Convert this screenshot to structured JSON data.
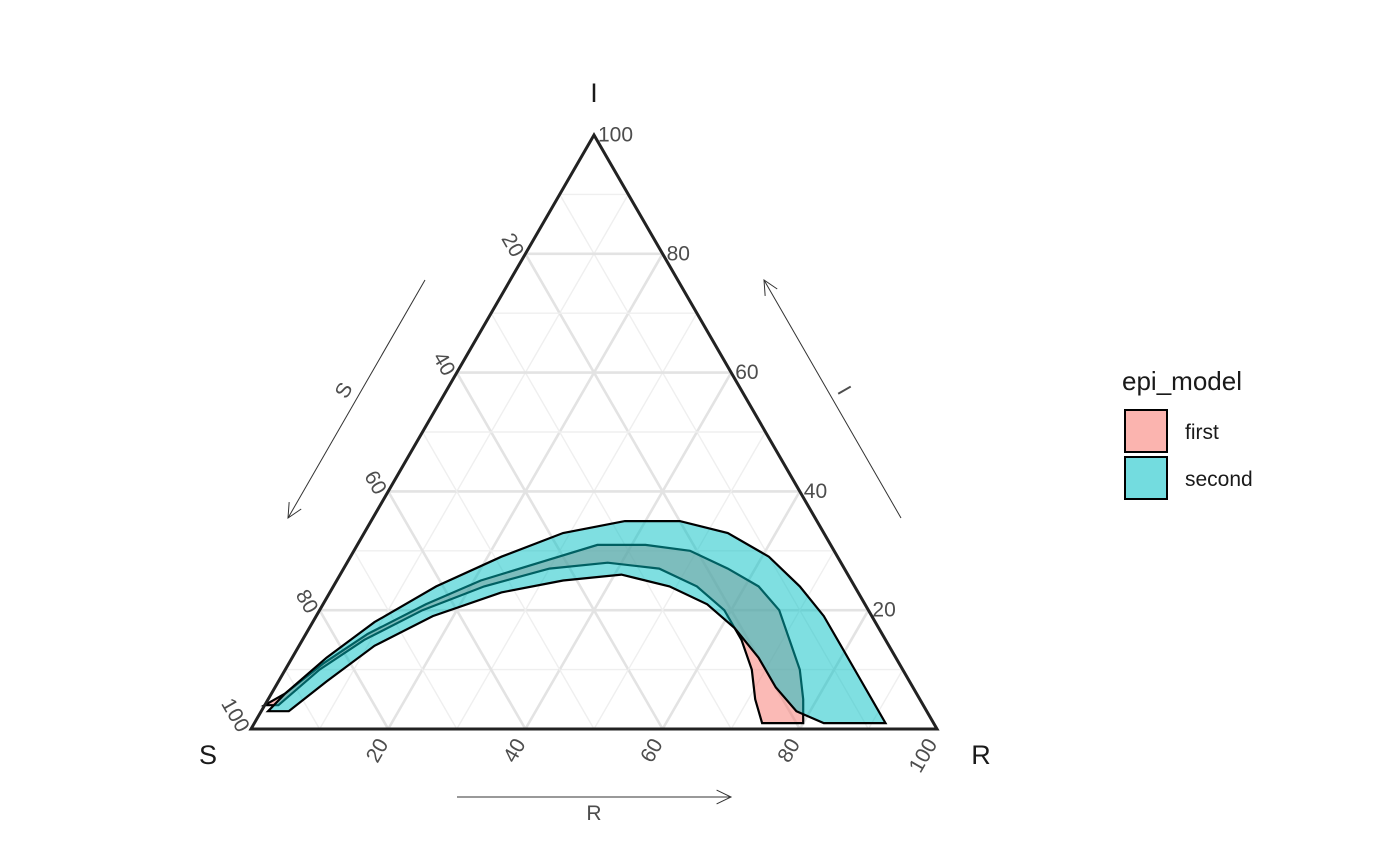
{
  "chart_data": {
    "type": "ternary-density-region",
    "vertices": {
      "top": "I",
      "left": "S",
      "right": "R"
    },
    "axes": [
      {
        "name": "S",
        "label": "S",
        "ticks": [
          "20",
          "40",
          "60",
          "80",
          "100"
        ]
      },
      {
        "name": "I",
        "label": "I",
        "ticks": [
          "20",
          "40",
          "60",
          "80",
          "100"
        ]
      },
      {
        "name": "R",
        "label": "R",
        "ticks": [
          "20",
          "40",
          "60",
          "80",
          "100"
        ]
      }
    ],
    "range": [
      0,
      100
    ],
    "grid": true,
    "legend": {
      "title": "epi_model",
      "position": "right",
      "items": [
        {
          "label": "first",
          "color": "#F8766D"
        },
        {
          "label": "second",
          "color": "#00BFC4"
        }
      ]
    },
    "series": [
      {
        "name": "first",
        "color": "#F8766D",
        "outer": [
          {
            "R": 2,
            "I": 4
          },
          {
            "R": 5,
            "I": 10
          },
          {
            "R": 9,
            "I": 15
          },
          {
            "R": 15,
            "I": 20
          },
          {
            "R": 22,
            "I": 24
          },
          {
            "R": 30,
            "I": 27
          },
          {
            "R": 38,
            "I": 28
          },
          {
            "R": 46,
            "I": 27
          },
          {
            "R": 53,
            "I": 24
          },
          {
            "R": 59,
            "I": 20
          },
          {
            "R": 64,
            "I": 15
          },
          {
            "R": 68,
            "I": 10
          },
          {
            "R": 71,
            "I": 5
          },
          {
            "R": 74,
            "I": 1
          },
          {
            "R": 80,
            "I": 1
          },
          {
            "R": 78,
            "I": 5
          },
          {
            "R": 75,
            "I": 10
          },
          {
            "R": 71,
            "I": 15
          },
          {
            "R": 67,
            "I": 20
          },
          {
            "R": 62,
            "I": 24
          },
          {
            "R": 56,
            "I": 27
          },
          {
            "R": 49,
            "I": 30
          },
          {
            "R": 42,
            "I": 31
          },
          {
            "R": 35,
            "I": 31
          },
          {
            "R": 28,
            "I": 28
          },
          {
            "R": 21,
            "I": 25
          },
          {
            "R": 15,
            "I": 21
          },
          {
            "R": 9,
            "I": 16
          },
          {
            "R": 5,
            "I": 11
          },
          {
            "R": 2,
            "I": 6
          },
          {
            "R": 0,
            "I": 4
          }
        ]
      },
      {
        "name": "second",
        "color": "#00BFC4",
        "outer": [
          {
            "R": 4,
            "I": 3
          },
          {
            "R": 7,
            "I": 8
          },
          {
            "R": 11,
            "I": 14
          },
          {
            "R": 17,
            "I": 19
          },
          {
            "R": 25,
            "I": 23
          },
          {
            "R": 33,
            "I": 25
          },
          {
            "R": 41,
            "I": 26
          },
          {
            "R": 49,
            "I": 24
          },
          {
            "R": 56,
            "I": 21
          },
          {
            "R": 62,
            "I": 17
          },
          {
            "R": 68,
            "I": 12
          },
          {
            "R": 73,
            "I": 7
          },
          {
            "R": 78,
            "I": 3
          },
          {
            "R": 83,
            "I": 1
          },
          {
            "R": 92,
            "I": 1
          },
          {
            "R": 88,
            "I": 5
          },
          {
            "R": 84,
            "I": 9
          },
          {
            "R": 79,
            "I": 14
          },
          {
            "R": 74,
            "I": 19
          },
          {
            "R": 68,
            "I": 24
          },
          {
            "R": 61,
            "I": 29
          },
          {
            "R": 53,
            "I": 33
          },
          {
            "R": 45,
            "I": 35
          },
          {
            "R": 37,
            "I": 35
          },
          {
            "R": 29,
            "I": 33
          },
          {
            "R": 22,
            "I": 29
          },
          {
            "R": 15,
            "I": 24
          },
          {
            "R": 9,
            "I": 18
          },
          {
            "R": 5,
            "I": 12
          },
          {
            "R": 2,
            "I": 6
          },
          {
            "R": 1,
            "I": 3
          }
        ]
      }
    ]
  }
}
